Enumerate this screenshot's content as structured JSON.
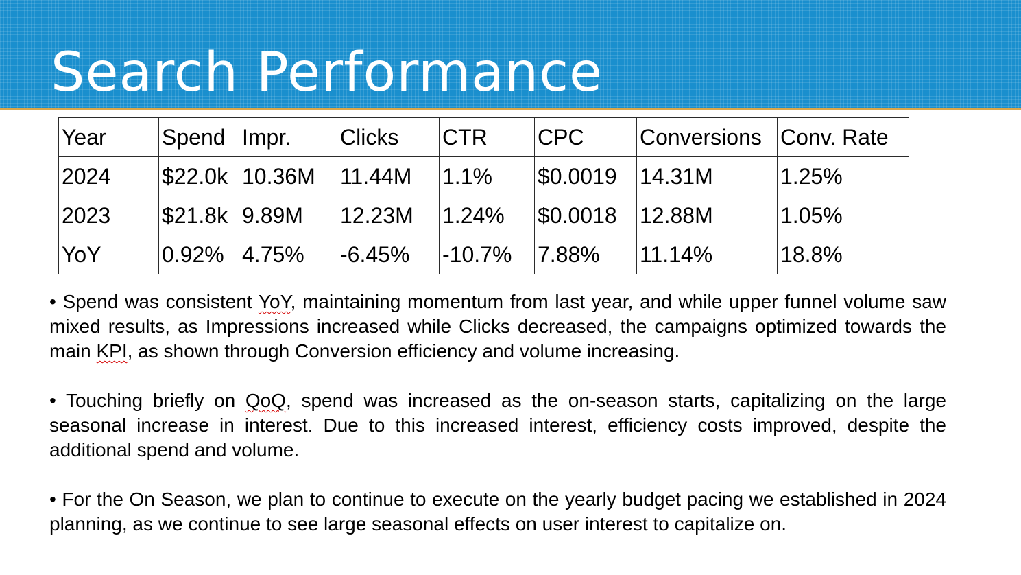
{
  "title": "Search Performance",
  "table": {
    "headers": [
      "Year",
      "Spend",
      "Impr.",
      "Clicks",
      "CTR",
      "CPC",
      "Conversions",
      "Conv. Rate"
    ],
    "rows": [
      [
        "2024",
        "$22.0k",
        "10.36M",
        "11.44M",
        "1.1%",
        "$0.0019",
        "14.31M",
        "1.25%"
      ],
      [
        "2023",
        "$21.8k",
        "9.89M",
        "12.23M",
        "1.24%",
        "$0.0018",
        "12.88M",
        "1.05%"
      ],
      [
        "YoY",
        "0.92%",
        "4.75%",
        "-6.45%",
        "-10.7%",
        "7.88%",
        "11.14%",
        "18.8%"
      ]
    ]
  },
  "bullets": [
    {
      "a": "• Spend was consistent ",
      "b": "YoY",
      "c": ", maintaining momentum from last year, and while upper funnel volume saw mixed results, as Impressions increased while Clicks decreased, the campaigns optimized towards the main ",
      "d": "KPI",
      "e": ", as shown through Conversion efficiency and volume increasing."
    },
    {
      "a": "• Touching briefly on ",
      "b": "QoQ",
      "c": ", spend was increased as the on-season starts, capitalizing on the large seasonal increase in interest. Due to this increased interest, efficiency costs improved, despite the additional spend and volume."
    },
    {
      "a": "• For the On Season, we plan to continue to execute on the yearly budget pacing we established in 2024 planning, as we continue to see large seasonal effects on user interest to capitalize on."
    }
  ],
  "colors": {
    "header_band": "#1a8fce",
    "header_rule": "#d9a64a",
    "spellcheck_underline": "#d40000"
  }
}
